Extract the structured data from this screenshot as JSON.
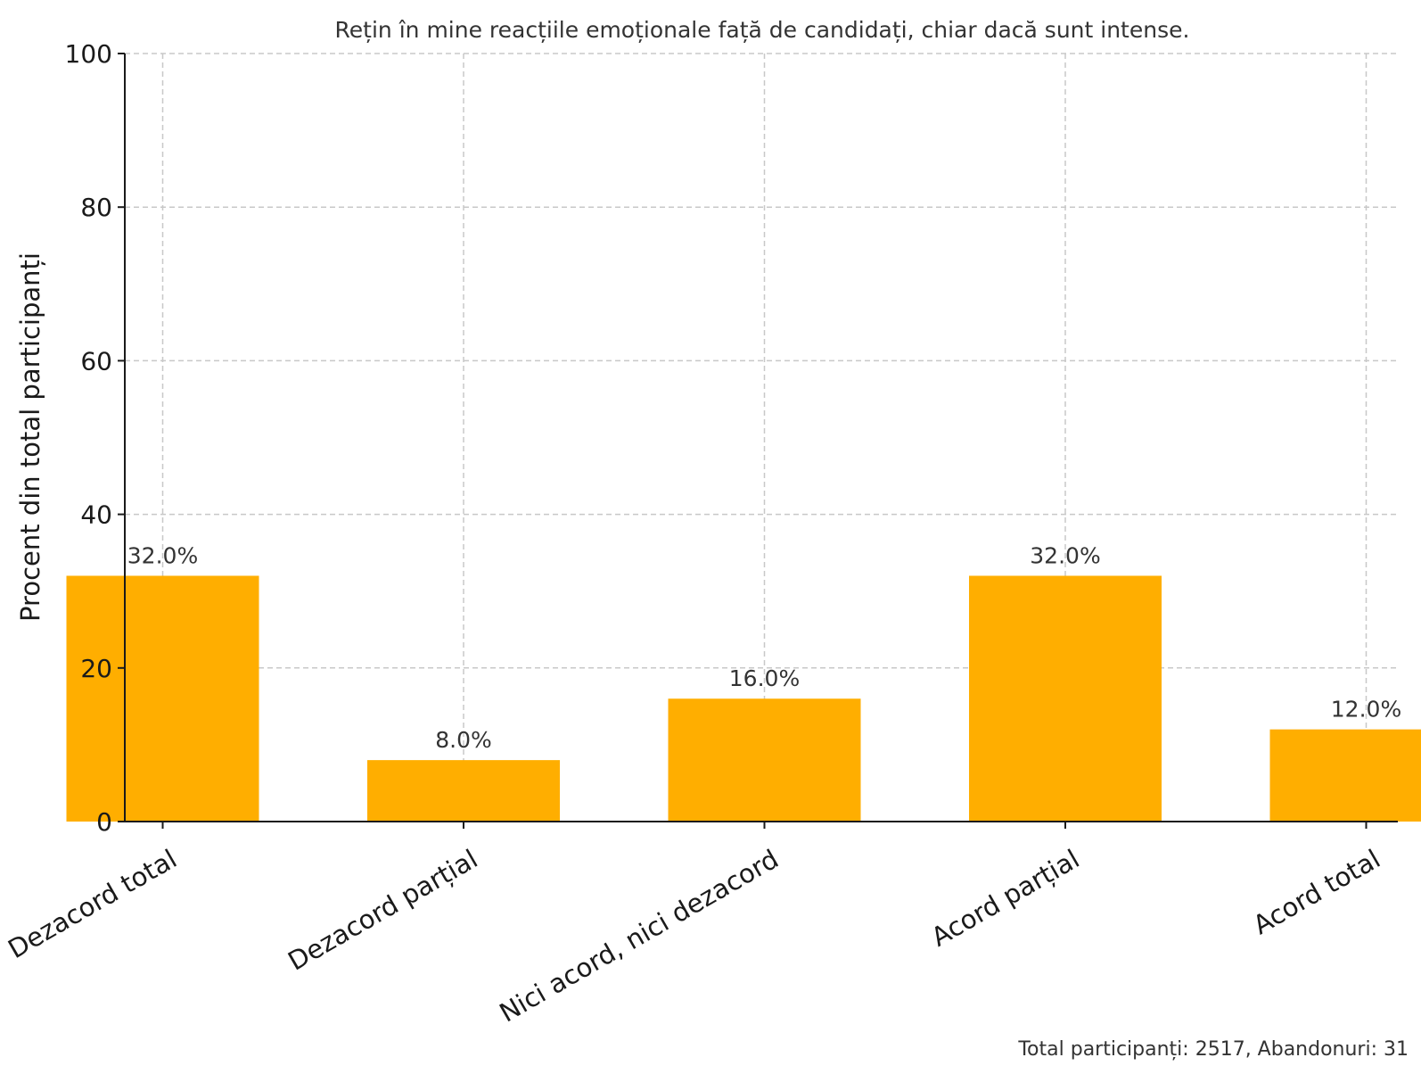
{
  "chart_data": {
    "type": "bar",
    "title": "Rețin în mine reacțiile emoționale față de candidați, chiar dacă sunt intense.",
    "xlabel": "",
    "ylabel": "Procent din total participanți",
    "categories": [
      "Dezacord total",
      "Dezacord parțial",
      "Nici acord, nici dezacord",
      "Acord parțial",
      "Acord total"
    ],
    "values": [
      32.0,
      8.0,
      16.0,
      32.0,
      12.0
    ],
    "value_labels": [
      "32.0%",
      "8.0%",
      "16.0%",
      "32.0%",
      "12.0%"
    ],
    "ylim": [
      0,
      100
    ],
    "yticks": [
      0,
      20,
      40,
      60,
      80,
      100
    ],
    "ytick_labels": [
      "0",
      "20",
      "40",
      "60",
      "80",
      "100"
    ],
    "grid": true,
    "bar_color": "#FFAE00",
    "footnote": "Total participanți: 2517, Abandonuri: 31"
  }
}
